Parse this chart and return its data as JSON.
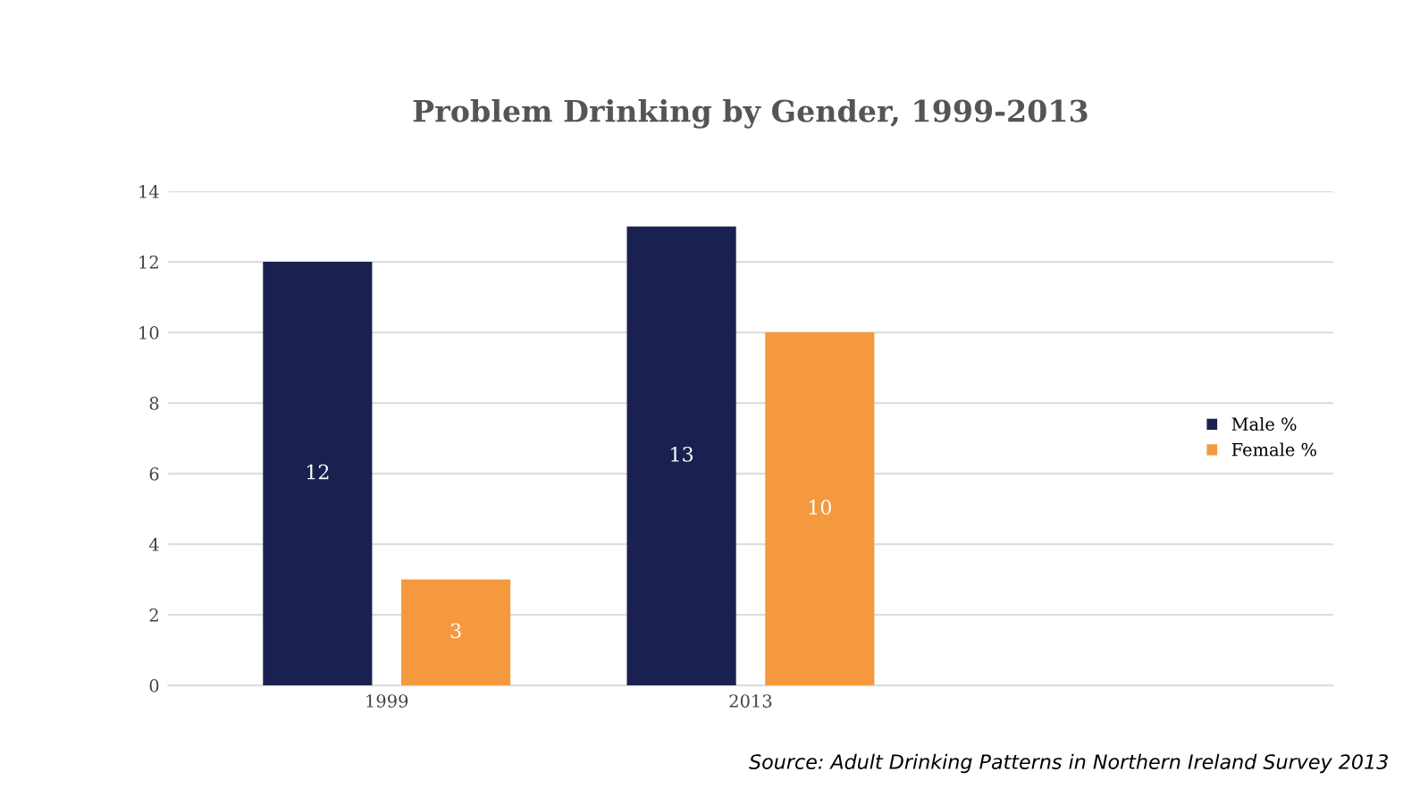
{
  "chart_data": {
    "type": "bar",
    "title": "Problem Drinking by Gender, 1999-2013",
    "categories": [
      "1999",
      "2013"
    ],
    "series": [
      {
        "name": "Male %",
        "color": "#1a2150",
        "values": [
          12,
          13
        ]
      },
      {
        "name": "Female %",
        "color": "#f5993f",
        "values": [
          3,
          10
        ]
      }
    ],
    "ylim": [
      0,
      14
    ],
    "yticks": [
      0,
      2,
      4,
      6,
      8,
      10,
      12,
      14
    ],
    "grid": "y",
    "legend": "right",
    "data_labels": true,
    "annotations": [
      "Source: Adult Drinking Patterns in Northern Ireland Survey 2013"
    ]
  }
}
